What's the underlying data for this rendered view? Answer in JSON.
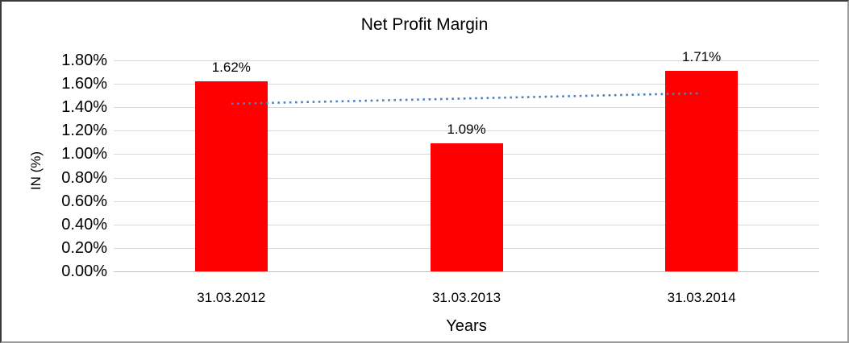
{
  "chart": {
    "title": "Net Profit Margin",
    "x_axis_title": "Years",
    "y_axis_title": "IN (%)"
  },
  "chart_data": {
    "type": "bar",
    "title": "Net Profit Margin",
    "xlabel": "Years",
    "ylabel": "IN (%)",
    "categories": [
      "31.03.2012",
      "31.03.2013",
      "31.03.2014"
    ],
    "values": [
      1.62,
      1.09,
      1.71
    ],
    "data_labels": [
      "1.62%",
      "1.09%",
      "1.71%"
    ],
    "y_tick_labels": [
      "0.00%",
      "0.20%",
      "0.40%",
      "0.60%",
      "0.80%",
      "1.00%",
      "1.20%",
      "1.40%",
      "1.60%",
      "1.80%"
    ],
    "y_tick_values": [
      0.0,
      0.2,
      0.4,
      0.6,
      0.8,
      1.0,
      1.2,
      1.4,
      1.6,
      1.8
    ],
    "ylim": [
      0,
      1.8
    ],
    "grid": "horizontal",
    "legend": "none",
    "bar_color": "#FF0000",
    "gridline_color": "#D9D9D9",
    "trendline": {
      "type": "linear",
      "style": "dotted",
      "color": "#4F81BD",
      "start_value": 1.43,
      "end_value": 1.52
    }
  }
}
